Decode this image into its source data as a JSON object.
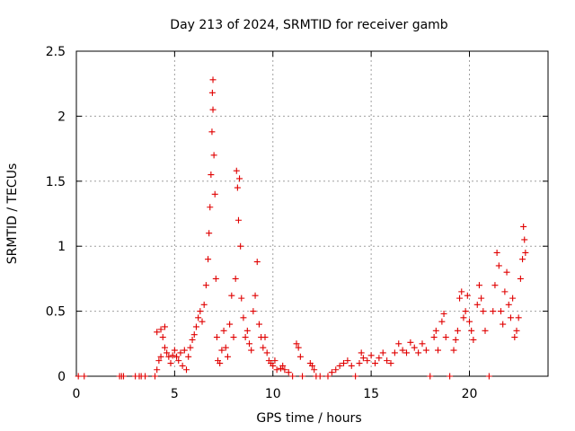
{
  "chart_data": {
    "type": "scatter",
    "title": "Day 213 of 2024, SRMTID for receiver gamb",
    "xlabel": "GPS time / hours",
    "ylabel": "SRMTID / TECUs",
    "xlim": [
      0,
      24
    ],
    "ylim": [
      0,
      2.5
    ],
    "xticks": [
      0,
      5,
      10,
      15,
      20
    ],
    "xtick_labels": [
      "0",
      "5",
      "10",
      "15",
      "20"
    ],
    "yticks": [
      0,
      0.5,
      1,
      1.5,
      2,
      2.5
    ],
    "ytick_labels": [
      "0",
      "0.5",
      "1",
      "1.5",
      "2",
      "2.5"
    ],
    "grid": true,
    "marker": "plus",
    "series": [
      {
        "name": "SRMTID",
        "color": "#e00000",
        "points": [
          [
            0.1,
            0
          ],
          [
            0.4,
            0
          ],
          [
            2.2,
            0
          ],
          [
            2.3,
            0
          ],
          [
            2.4,
            0
          ],
          [
            3.0,
            0
          ],
          [
            3.2,
            0
          ],
          [
            3.3,
            0
          ],
          [
            3.5,
            0
          ],
          [
            4.0,
            0
          ],
          [
            4.1,
            0.05
          ],
          [
            4.2,
            0.12
          ],
          [
            4.3,
            0.15
          ],
          [
            4.1,
            0.34
          ],
          [
            4.3,
            0.36
          ],
          [
            4.5,
            0.38
          ],
          [
            4.4,
            0.3
          ],
          [
            4.5,
            0.22
          ],
          [
            4.6,
            0.18
          ],
          [
            4.7,
            0.15
          ],
          [
            4.8,
            0.1
          ],
          [
            4.9,
            0.16
          ],
          [
            5.0,
            0.2
          ],
          [
            5.1,
            0.15
          ],
          [
            5.2,
            0.12
          ],
          [
            5.3,
            0.18
          ],
          [
            5.4,
            0.08
          ],
          [
            5.5,
            0.2
          ],
          [
            5.6,
            0.05
          ],
          [
            5.7,
            0.15
          ],
          [
            5.8,
            0.22
          ],
          [
            5.9,
            0.28
          ],
          [
            6.0,
            0.32
          ],
          [
            6.1,
            0.38
          ],
          [
            6.2,
            0.45
          ],
          [
            6.3,
            0.5
          ],
          [
            6.4,
            0.42
          ],
          [
            6.5,
            0.55
          ],
          [
            6.6,
            0.7
          ],
          [
            6.7,
            0.9
          ],
          [
            6.75,
            1.1
          ],
          [
            6.8,
            1.3
          ],
          [
            6.85,
            1.55
          ],
          [
            6.9,
            1.88
          ],
          [
            6.95,
            2.05
          ],
          [
            6.92,
            2.18
          ],
          [
            6.95,
            2.28
          ],
          [
            7.0,
            1.7
          ],
          [
            7.05,
            1.4
          ],
          [
            7.1,
            0.75
          ],
          [
            7.15,
            0.3
          ],
          [
            7.2,
            0.12
          ],
          [
            7.3,
            0.1
          ],
          [
            7.4,
            0.2
          ],
          [
            7.5,
            0.35
          ],
          [
            7.6,
            0.22
          ],
          [
            7.7,
            0.15
          ],
          [
            7.8,
            0.4
          ],
          [
            7.9,
            0.62
          ],
          [
            8.0,
            0.3
          ],
          [
            8.1,
            0.75
          ],
          [
            8.15,
            1.58
          ],
          [
            8.2,
            1.45
          ],
          [
            8.25,
            1.2
          ],
          [
            8.3,
            1.52
          ],
          [
            8.35,
            1.0
          ],
          [
            8.4,
            0.6
          ],
          [
            8.5,
            0.45
          ],
          [
            8.6,
            0.3
          ],
          [
            8.7,
            0.35
          ],
          [
            8.8,
            0.25
          ],
          [
            8.9,
            0.2
          ],
          [
            9.0,
            0.5
          ],
          [
            9.1,
            0.62
          ],
          [
            9.2,
            0.88
          ],
          [
            9.3,
            0.4
          ],
          [
            9.4,
            0.3
          ],
          [
            9.5,
            0.22
          ],
          [
            9.6,
            0.3
          ],
          [
            9.7,
            0.18
          ],
          [
            9.8,
            0.12
          ],
          [
            9.9,
            0.1
          ],
          [
            10.0,
            0.08
          ],
          [
            10.1,
            0.12
          ],
          [
            10.2,
            0.05
          ],
          [
            10.4,
            0.06
          ],
          [
            10.5,
            0.08
          ],
          [
            10.6,
            0.05
          ],
          [
            10.8,
            0.03
          ],
          [
            11.0,
            0
          ],
          [
            11.2,
            0.25
          ],
          [
            11.3,
            0.22
          ],
          [
            11.4,
            0.15
          ],
          [
            11.5,
            0
          ],
          [
            11.9,
            0.1
          ],
          [
            12.0,
            0.08
          ],
          [
            12.1,
            0.05
          ],
          [
            12.2,
            0
          ],
          [
            12.4,
            0
          ],
          [
            12.8,
            0
          ],
          [
            13.0,
            0.03
          ],
          [
            13.2,
            0.05
          ],
          [
            13.4,
            0.08
          ],
          [
            13.6,
            0.1
          ],
          [
            13.8,
            0.12
          ],
          [
            14.0,
            0.08
          ],
          [
            14.2,
            0
          ],
          [
            14.4,
            0.1
          ],
          [
            14.5,
            0.18
          ],
          [
            14.6,
            0.14
          ],
          [
            14.8,
            0.12
          ],
          [
            15.0,
            0.16
          ],
          [
            15.2,
            0.1
          ],
          [
            15.4,
            0.14
          ],
          [
            15.6,
            0.18
          ],
          [
            15.8,
            0.12
          ],
          [
            16.0,
            0.1
          ],
          [
            16.2,
            0.18
          ],
          [
            16.4,
            0.25
          ],
          [
            16.6,
            0.2
          ],
          [
            16.8,
            0.18
          ],
          [
            17.0,
            0.26
          ],
          [
            17.2,
            0.22
          ],
          [
            17.4,
            0.18
          ],
          [
            17.6,
            0.25
          ],
          [
            17.8,
            0.2
          ],
          [
            18.0,
            0
          ],
          [
            18.2,
            0.3
          ],
          [
            18.3,
            0.35
          ],
          [
            18.4,
            0.2
          ],
          [
            18.6,
            0.42
          ],
          [
            18.7,
            0.48
          ],
          [
            18.8,
            0.3
          ],
          [
            19.0,
            0
          ],
          [
            19.2,
            0.2
          ],
          [
            19.3,
            0.28
          ],
          [
            19.4,
            0.35
          ],
          [
            19.5,
            0.6
          ],
          [
            19.6,
            0.65
          ],
          [
            19.7,
            0.45
          ],
          [
            19.8,
            0.5
          ],
          [
            19.9,
            0.62
          ],
          [
            20.0,
            0.42
          ],
          [
            20.1,
            0.35
          ],
          [
            20.2,
            0.28
          ],
          [
            20.4,
            0.55
          ],
          [
            20.5,
            0.7
          ],
          [
            20.6,
            0.6
          ],
          [
            20.7,
            0.5
          ],
          [
            20.8,
            0.35
          ],
          [
            21.0,
            0
          ],
          [
            21.2,
            0.5
          ],
          [
            21.3,
            0.7
          ],
          [
            21.4,
            0.95
          ],
          [
            21.5,
            0.85
          ],
          [
            21.6,
            0.5
          ],
          [
            21.7,
            0.4
          ],
          [
            21.8,
            0.65
          ],
          [
            21.9,
            0.8
          ],
          [
            22.0,
            0.55
          ],
          [
            22.1,
            0.45
          ],
          [
            22.2,
            0.6
          ],
          [
            22.3,
            0.3
          ],
          [
            22.4,
            0.35
          ],
          [
            22.5,
            0.45
          ],
          [
            22.6,
            0.75
          ],
          [
            22.7,
            0.9
          ],
          [
            22.75,
            1.15
          ],
          [
            22.8,
            1.05
          ],
          [
            22.85,
            0.95
          ]
        ]
      }
    ]
  }
}
